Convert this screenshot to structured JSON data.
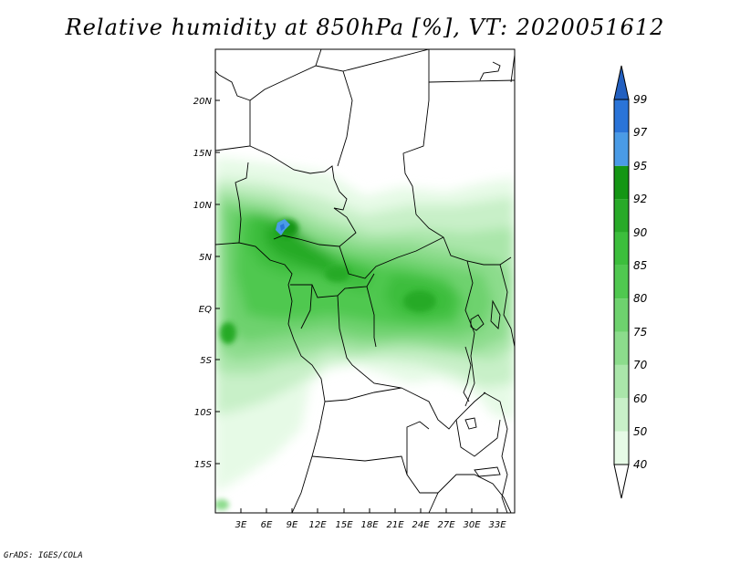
{
  "title": "Relative humidity at 850hPa [%], VT: 2020051612",
  "credit": "GrADS: IGES/COLA",
  "map": {
    "lat_labels": [
      "20N",
      "15N",
      "10N",
      "5N",
      "EQ",
      "5S",
      "10S",
      "15S"
    ],
    "lon_labels": [
      "3E",
      "6E",
      "9E",
      "12E",
      "15E",
      "18E",
      "21E",
      "24E",
      "27E",
      "30E",
      "33E"
    ],
    "lat_range": [
      -19.5,
      24.5
    ],
    "lon_range": [
      0,
      34.5
    ]
  },
  "colorbar": {
    "levels": [
      "40",
      "50",
      "60",
      "70",
      "75",
      "80",
      "85",
      "90",
      "92",
      "95",
      "97",
      "99"
    ],
    "colors": [
      "#ffffff",
      "#e6fae6",
      "#c8f0c8",
      "#aae6aa",
      "#8cdc8c",
      "#6ed26e",
      "#50c850",
      "#3cbe3c",
      "#28aa28",
      "#149614",
      "#4a9be6",
      "#2a74d8",
      "#2360c0"
    ]
  }
}
